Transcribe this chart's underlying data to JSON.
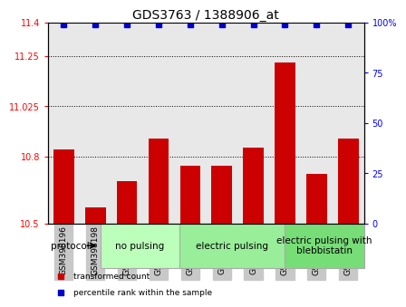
{
  "title": "GDS3763 / 1388906_at",
  "samples": [
    "GSM398196",
    "GSM398198",
    "GSM398201",
    "GSM398197",
    "GSM398199",
    "GSM398202",
    "GSM398204",
    "GSM398200",
    "GSM398203",
    "GSM398205"
  ],
  "bar_values": [
    10.83,
    10.57,
    10.69,
    10.88,
    10.76,
    10.76,
    10.84,
    11.22,
    10.72,
    10.88
  ],
  "percentile_values": [
    99,
    99,
    99,
    99,
    99,
    99,
    99,
    99,
    99,
    99
  ],
  "bar_color": "#cc0000",
  "percentile_color": "#0000cc",
  "ylim_left": [
    10.5,
    11.4
  ],
  "ylim_right": [
    0,
    100
  ],
  "yticks_left": [
    10.5,
    10.8,
    11.025,
    11.25,
    11.4
  ],
  "ytick_labels_left": [
    "10.5",
    "10.8",
    "11.025",
    "11.25",
    "11.4"
  ],
  "yticks_right": [
    0,
    25,
    50,
    75,
    100
  ],
  "ytick_labels_right": [
    "0",
    "25",
    "50",
    "75",
    "100%"
  ],
  "groups": [
    {
      "label": "no pulsing",
      "start": 0,
      "end": 3,
      "color": "#bbffbb"
    },
    {
      "label": "electric pulsing",
      "start": 3,
      "end": 7,
      "color": "#99ee99"
    },
    {
      "label": "electric pulsing with\nblebbistatin",
      "start": 7,
      "end": 10,
      "color": "#77dd77"
    }
  ],
  "legend_items": [
    {
      "label": "transformed count",
      "color": "#cc0000"
    },
    {
      "label": "percentile rank within the sample",
      "color": "#0000cc"
    }
  ],
  "protocol_label": "protocol",
  "grid_linestyle": ":",
  "grid_color": "black",
  "plot_bg_color": "#e8e8e8",
  "sample_bg_color": "#c8c8c8",
  "title_fontsize": 10,
  "tick_label_fontsize": 7,
  "sample_fontsize": 6.5,
  "group_fontsize": 7.5
}
